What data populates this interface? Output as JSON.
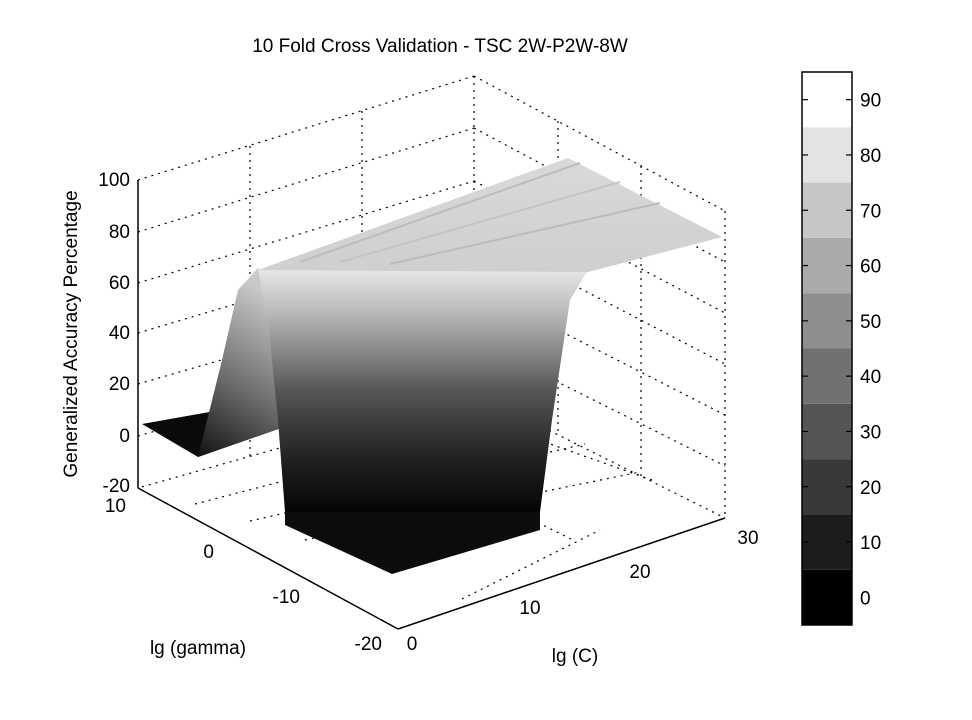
{
  "chart_data": {
    "type": "surface",
    "title": "10 Fold Cross Validation - TSC 2W-P2W-8W",
    "xlabel": "lg (C)",
    "ylabel": "lg (gamma)",
    "zlabel": "Generalized Accuracy Percentage",
    "xlim": [
      0,
      30
    ],
    "ylim": [
      -20,
      10
    ],
    "zlim": [
      -20,
      100
    ],
    "x_ticks": [
      "0",
      "10",
      "20",
      "30"
    ],
    "y_ticks": [
      "10",
      "0",
      "-10",
      "-20"
    ],
    "z_ticks": [
      "100",
      "80",
      "60",
      "40",
      "20",
      "0",
      "-20"
    ],
    "grid": true,
    "colormap": "gray",
    "colorbar": {
      "ticks": [
        "90",
        "80",
        "70",
        "60",
        "50",
        "40",
        "30",
        "20",
        "10",
        "0"
      ],
      "range": [
        -5,
        95
      ]
    },
    "surface": {
      "description_values": {
        "plateau_accuracy": 75,
        "low_region_accuracy": 0,
        "noisy_wall_accuracy_range": [
          5,
          65
        ]
      }
    }
  }
}
